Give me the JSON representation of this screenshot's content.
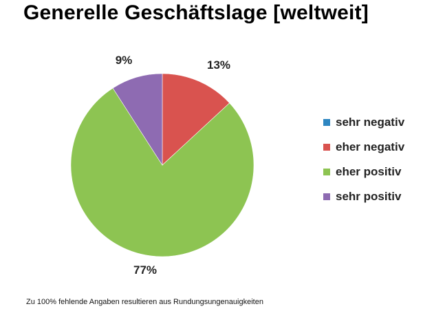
{
  "chart_data": {
    "type": "pie",
    "title": "Generelle Geschäftslage [weltweit]",
    "categories": [
      "sehr negativ",
      "eher negativ",
      "eher positiv",
      "sehr positiv"
    ],
    "values": [
      0,
      13,
      77,
      9
    ],
    "labels": [
      "",
      "13%",
      "77%",
      "9%"
    ],
    "colors": [
      "#2e86c1",
      "#d9534f",
      "#8dc452",
      "#8e6bb2"
    ],
    "legend_position": "right",
    "footnote": "Zu 100% fehlende Angaben resultieren aus Rundungsungenauigkeiten"
  }
}
